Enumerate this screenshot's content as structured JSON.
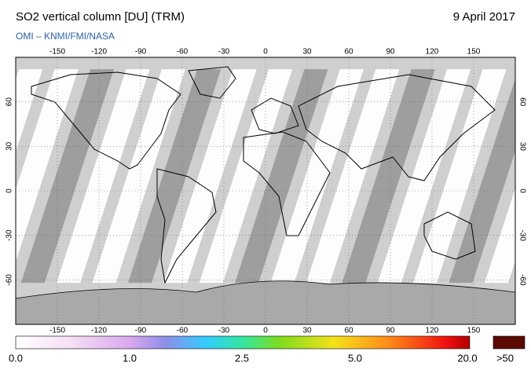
{
  "header": {
    "title": "SO2 vertical column [DU] (TRM)",
    "date": "9 April 2017",
    "credit": "OMI – KNMI/FMI/NASA"
  },
  "map": {
    "lon_ticks": [
      -150,
      -120,
      -90,
      -60,
      -30,
      0,
      30,
      60,
      90,
      120,
      150
    ],
    "lat_ticks": [
      60,
      30,
      0,
      -30,
      -60
    ]
  },
  "colorbar": {
    "labels": [
      "0.0",
      "1.0",
      "2.5",
      "5.0",
      "20.0"
    ],
    "overflow_label": ">50"
  }
}
